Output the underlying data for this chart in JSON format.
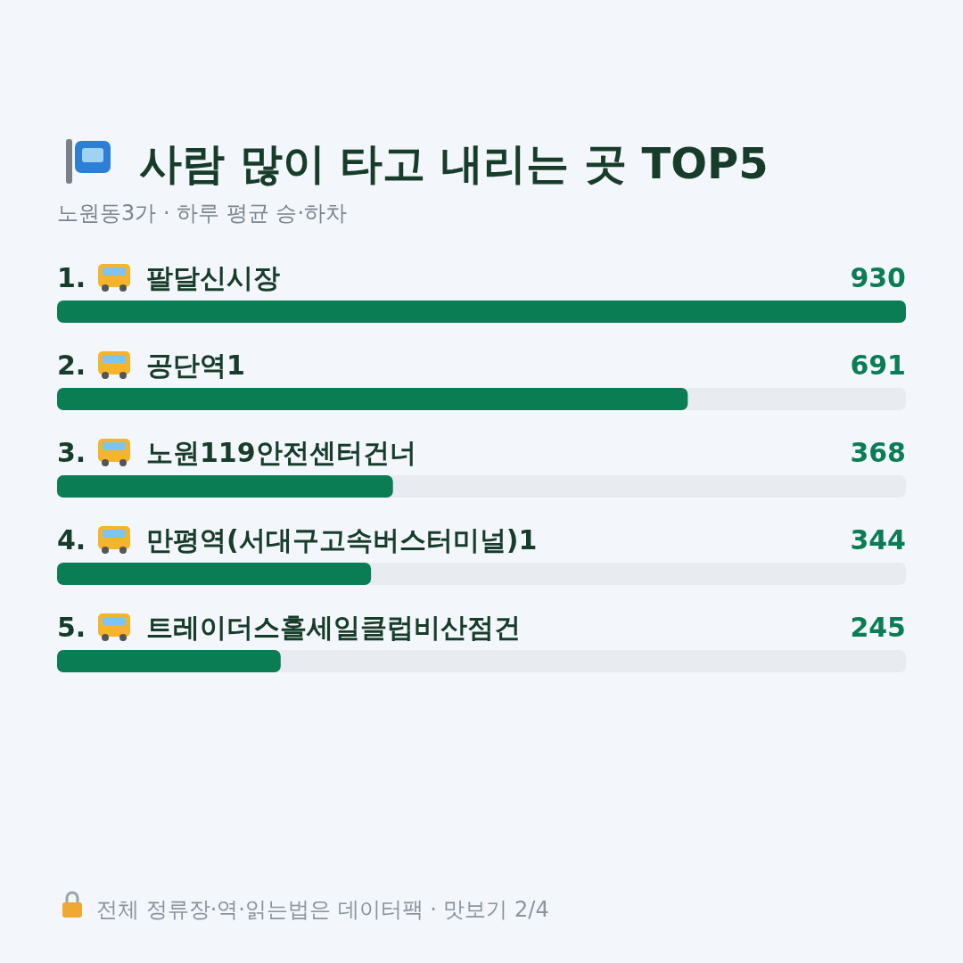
{
  "chart_data": {
    "type": "bar",
    "orientation": "horizontal",
    "title": "사람 많이 타고 내리는 곳 TOP5",
    "subtitle": "노원동3가 · 하루 평균 승·하차",
    "categories": [
      "1. 팔달신시장",
      "2. 공단역1",
      "3. 노원119안전센터건너",
      "4. 만평역(서대구고속버스터미널)1",
      "5. 트레이더스홀세일클럽비산점건"
    ],
    "values": [
      930,
      691,
      368,
      344,
      245
    ],
    "color": "#0b7d55",
    "xlim": [
      0,
      930
    ],
    "data_labels": true,
    "annotations": [
      "전체 정류장·역·읽는법은 데이터팩 · 맛보기 2/4"
    ]
  }
}
